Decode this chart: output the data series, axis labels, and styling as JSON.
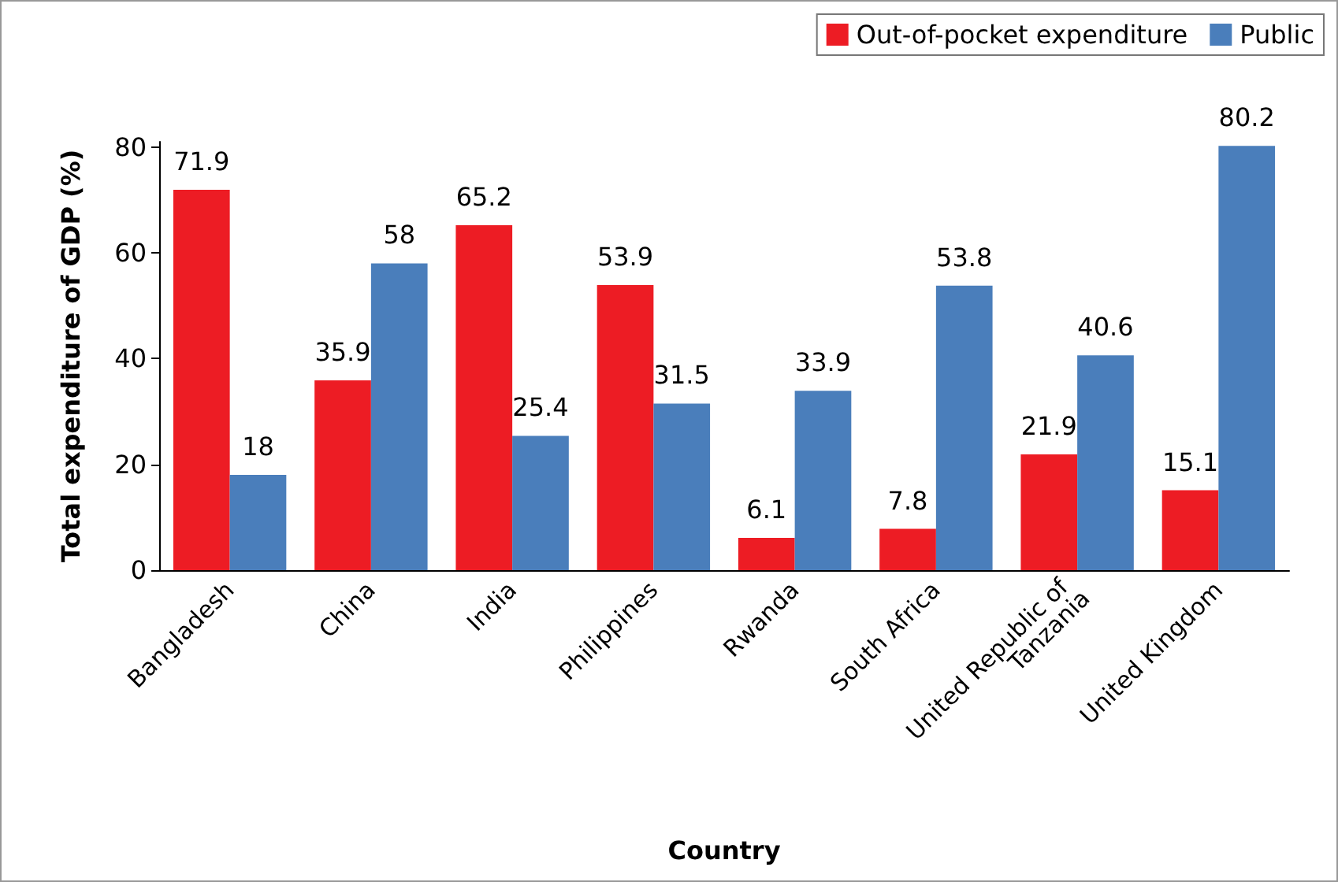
{
  "chart_data": {
    "type": "bar",
    "xlabel": "Country",
    "ylabel": "Total expenditure of GDP (%)",
    "categories": [
      "Bangladesh",
      "China",
      "India",
      "Philippines",
      "Rwanda",
      "South Africa",
      "United Republic of Tanzania",
      "United Kingdom"
    ],
    "series": [
      {
        "name": "Out-of-pocket expenditure",
        "color": "#ed1c24",
        "values": [
          71.9,
          35.9,
          65.2,
          53.9,
          6.1,
          7.8,
          21.9,
          15.1
        ]
      },
      {
        "name": "Public",
        "color": "#4a7ebb",
        "values": [
          18,
          58,
          25.4,
          31.5,
          33.9,
          53.8,
          40.6,
          80.2
        ]
      }
    ],
    "ylim": [
      0,
      81
    ],
    "yticks": [
      0,
      20,
      40,
      60,
      80
    ],
    "data_labels": true,
    "legend": "top right",
    "grid": false
  }
}
